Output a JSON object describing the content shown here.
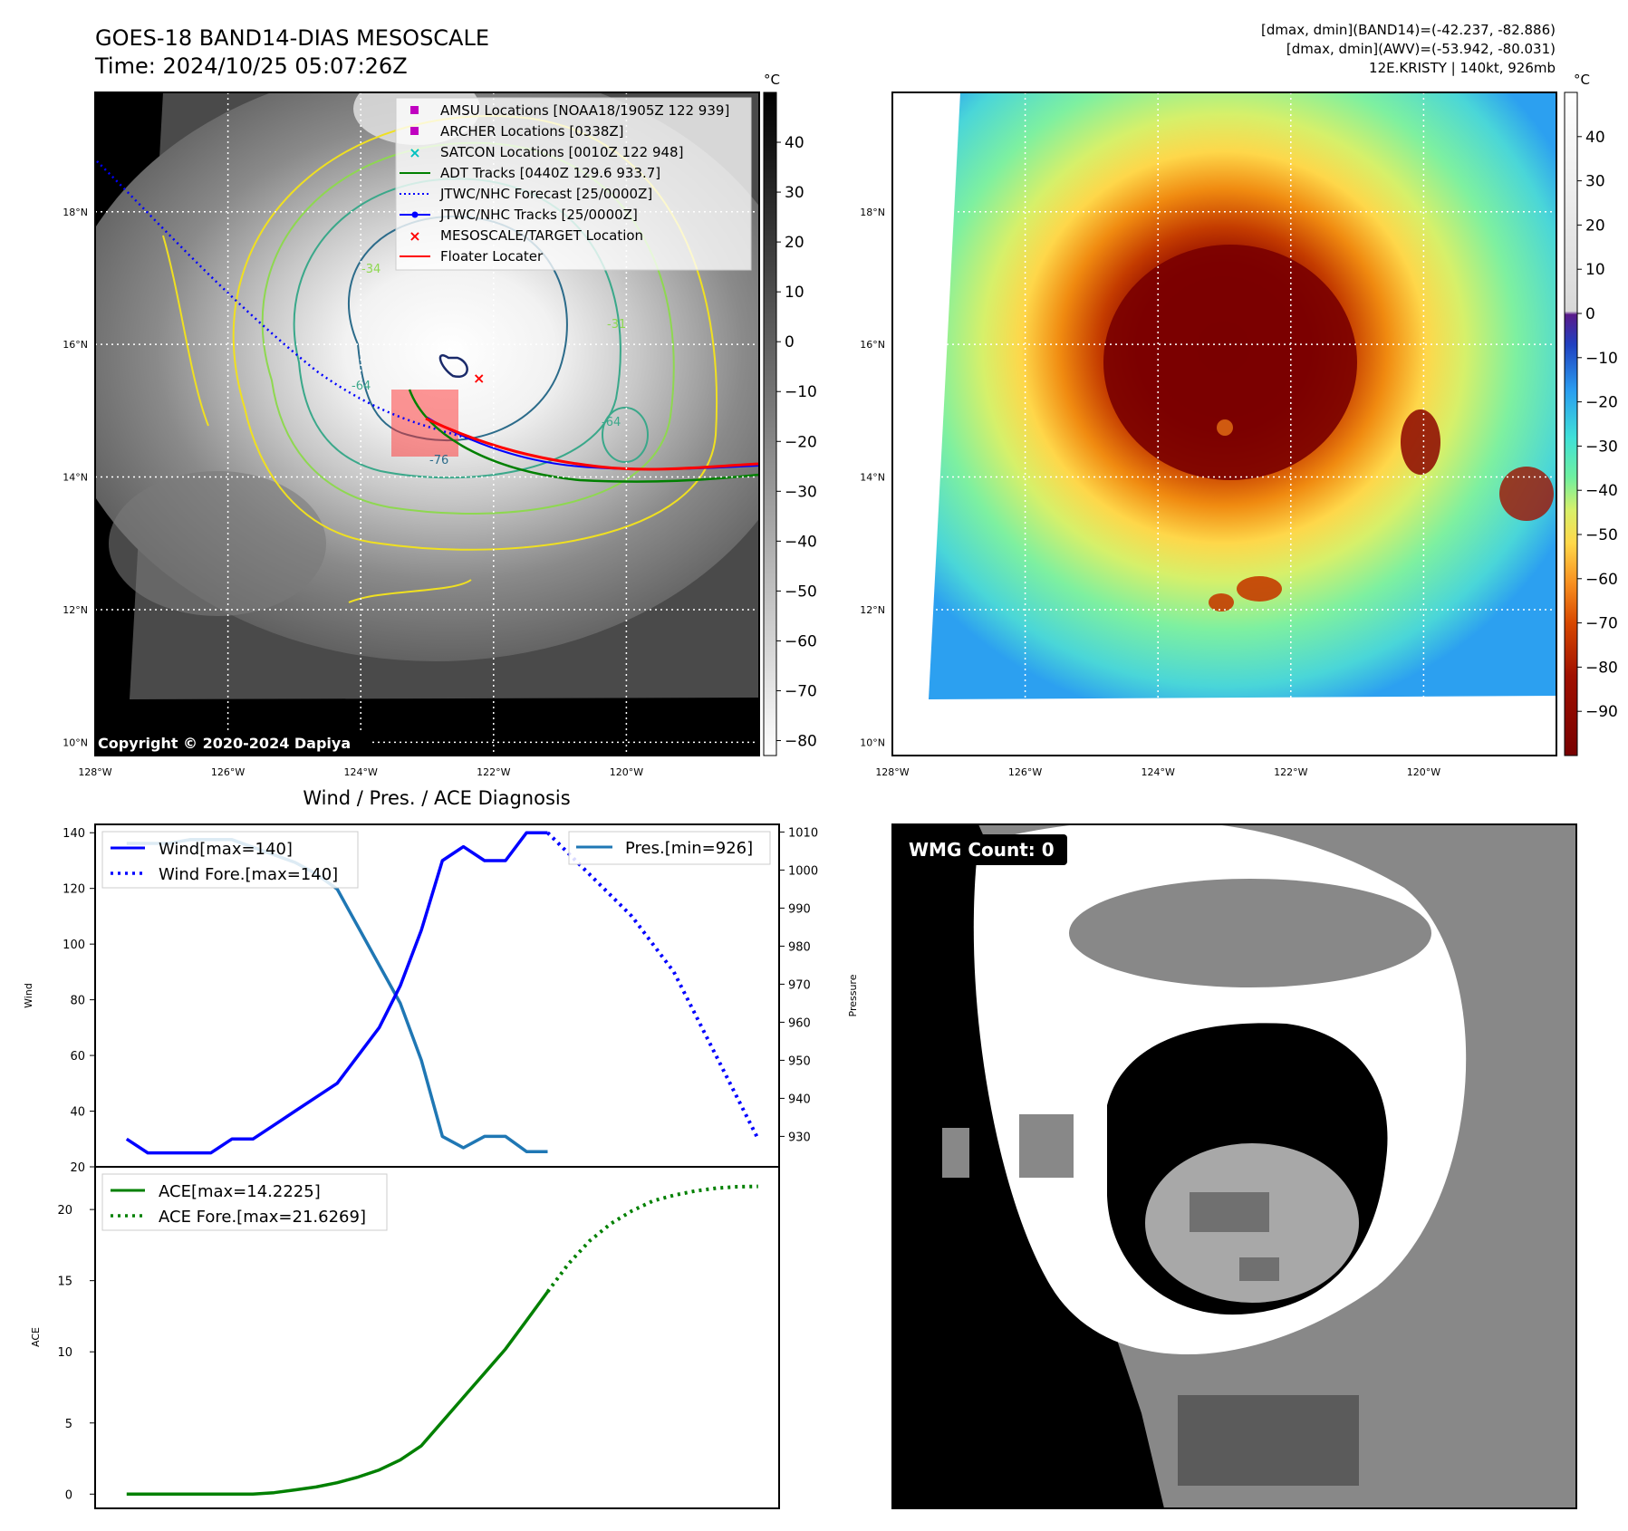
{
  "header": {
    "title_line1": "GOES-18 BAND14-DIAS MESOSCALE",
    "title_line2": "Time: 2024/10/25 05:07:26Z",
    "stats_line1": "[dmax, dmin](BAND14)=(-42.237, -82.886)",
    "stats_line2": "[dmax, dmin](AWV)=(-53.942, -80.031)",
    "stats_line3": "12E.KRISTY | 140kt, 926mb"
  },
  "map_axes": {
    "lat_labels": [
      "18°N",
      "16°N",
      "14°N",
      "12°N",
      "10°N"
    ],
    "lat_values": [
      18,
      16,
      14,
      12,
      10
    ],
    "lon_labels": [
      "128°W",
      "126°W",
      "124°W",
      "122°W",
      "120°W"
    ],
    "lon_values": [
      -128,
      -126,
      -124,
      -122,
      -120
    ],
    "lat_range": [
      9.8,
      19.8
    ],
    "lon_range": [
      -128,
      -118
    ]
  },
  "gray_map": {
    "copyright": "Copyright © 2020-2024 Dapiya",
    "colorbar_unit": "°C",
    "colorbar_ticks": [
      "40",
      "30",
      "20",
      "10",
      "0",
      "−10",
      "−20",
      "−30",
      "−40",
      "−50",
      "−60",
      "−70",
      "−80"
    ],
    "colorbar_range": [
      50,
      -83
    ],
    "legend": [
      {
        "label": "AMSU Locations [NOAA18/1905Z 122 939]",
        "marker": "square",
        "color": "#c000c0"
      },
      {
        "label": "ARCHER Locations [0338Z]",
        "marker": "square",
        "color": "#c000c0"
      },
      {
        "label": "SATCON Locations [0010Z 122 948]",
        "marker": "x",
        "color": "#00c0c0"
      },
      {
        "label": "ADT Tracks [0440Z 129.6 933.7]",
        "marker": "line",
        "color": "#008000"
      },
      {
        "label": "JTWC/NHC Forecast [25/0000Z]",
        "marker": "dotted",
        "color": "#0000ff"
      },
      {
        "label": "JTWC/NHC Tracks [25/0000Z]",
        "marker": "line-dot",
        "color": "#0000ff"
      },
      {
        "label": "MESOSCALE/TARGET Location",
        "marker": "x",
        "color": "#ff0000"
      },
      {
        "label": "Floater Locater",
        "marker": "line",
        "color": "#ff0000"
      }
    ],
    "contour_labels": [
      "-34",
      "-64",
      "-76",
      "-31",
      "-64"
    ]
  },
  "color_map": {
    "colorbar_unit": "°C",
    "colorbar_ticks": [
      "40",
      "30",
      "20",
      "10",
      "0",
      "−10",
      "−20",
      "−30",
      "−40",
      "−50",
      "−60",
      "−70",
      "−80",
      "−90"
    ],
    "colorbar_range": [
      50,
      -100
    ]
  },
  "wind_chart": {
    "title": "Wind / Pres. / ACE Diagnosis",
    "ylabel_left": "Wind",
    "ylabel_right": "Pressure",
    "legend_left": [
      "Wind[max=140]",
      "Wind Fore.[max=140]"
    ],
    "legend_right": [
      "Pres.[min=926]"
    ],
    "wind_ticks": [
      "140",
      "120",
      "100",
      "80",
      "60",
      "40",
      "20"
    ],
    "pres_ticks": [
      "1010",
      "1000",
      "990",
      "980",
      "970",
      "960",
      "950",
      "940",
      "930"
    ],
    "colors": {
      "wind": "#0000ff",
      "pres": "#1f77b4"
    }
  },
  "ace_chart": {
    "ylabel": "ACE",
    "legend": [
      "ACE[max=14.2225]",
      "ACE Fore.[max=21.6269]"
    ],
    "ticks": [
      "20",
      "15",
      "10",
      "5",
      "0"
    ],
    "color": "#008000"
  },
  "wmg": {
    "label": "WMG Count: 0"
  },
  "chart_data": [
    {
      "type": "line",
      "title": "Wind / Pres. / ACE Diagnosis",
      "xlabel": "",
      "ylabel": "Wind",
      "ylim": [
        20,
        143
      ],
      "x": [
        0,
        1,
        2,
        3,
        4,
        5,
        6,
        7,
        8,
        9,
        10,
        11,
        12,
        13,
        14,
        15,
        16,
        17,
        18,
        19,
        20,
        21,
        22,
        23,
        24,
        25,
        26,
        27,
        28,
        29,
        30
      ],
      "series": [
        {
          "name": "Wind[max=140]",
          "x": [
            0,
            1,
            2,
            3,
            4,
            5,
            6,
            7,
            8,
            9,
            10,
            11,
            12,
            13,
            14,
            15,
            16,
            17,
            18,
            19,
            20
          ],
          "values": [
            30,
            25,
            25,
            25,
            25,
            30,
            30,
            35,
            40,
            45,
            50,
            60,
            70,
            85,
            105,
            130,
            135,
            130,
            130,
            140,
            140
          ]
        },
        {
          "name": "Wind Fore.[max=140]",
          "x": [
            20,
            22,
            24,
            26,
            28,
            30
          ],
          "values": [
            140,
            125,
            110,
            90,
            60,
            30
          ]
        }
      ]
    },
    {
      "type": "line",
      "xlabel": "",
      "ylabel": "Pressure",
      "ylim": [
        922,
        1012
      ],
      "series": [
        {
          "name": "Pres.[min=926]",
          "x": [
            0,
            1,
            2,
            3,
            4,
            5,
            6,
            7,
            8,
            9,
            10,
            11,
            12,
            13,
            14,
            15,
            16,
            17,
            18,
            19,
            20
          ],
          "values": [
            1007,
            1007,
            1007,
            1008,
            1008,
            1008,
            1006,
            1004,
            1002,
            999,
            995,
            985,
            975,
            965,
            950,
            930,
            927,
            930,
            930,
            926,
            926
          ]
        }
      ]
    },
    {
      "type": "line",
      "xlabel": "",
      "ylabel": "ACE",
      "ylim": [
        -1,
        23
      ],
      "series": [
        {
          "name": "ACE[max=14.2225]",
          "x": [
            0,
            1,
            2,
            3,
            4,
            5,
            6,
            7,
            8,
            9,
            10,
            11,
            12,
            13,
            14,
            15,
            16,
            17,
            18,
            19,
            20
          ],
          "values": [
            0,
            0,
            0,
            0,
            0,
            0,
            0,
            0.1,
            0.3,
            0.5,
            0.8,
            1.2,
            1.7,
            2.4,
            3.4,
            5.1,
            6.8,
            8.5,
            10.2,
            12.2,
            14.2225
          ]
        },
        {
          "name": "ACE Fore.[max=21.6269]",
          "x": [
            20,
            21,
            22,
            23,
            24,
            25,
            26,
            27,
            28,
            29,
            30
          ],
          "values": [
            14.2225,
            16.2,
            17.8,
            19.0,
            19.9,
            20.6,
            21.0,
            21.3,
            21.5,
            21.6,
            21.6269
          ]
        }
      ]
    }
  ]
}
